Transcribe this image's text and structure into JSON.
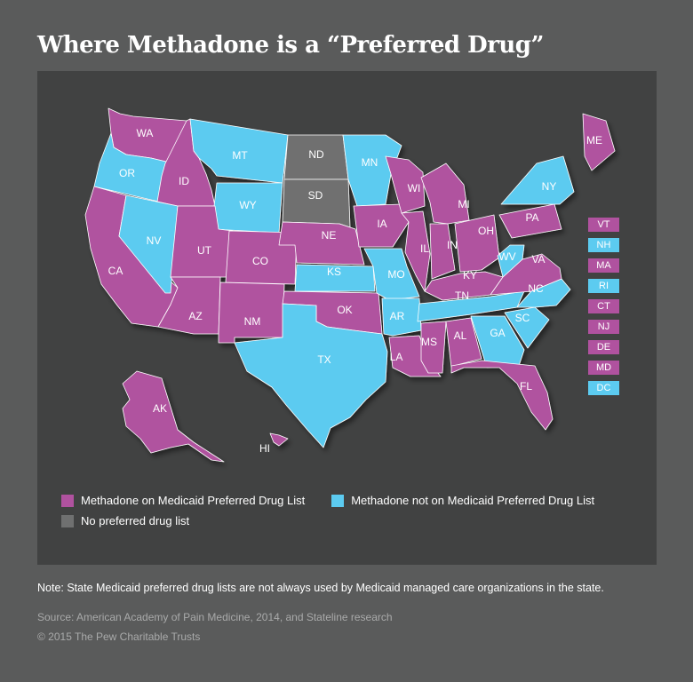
{
  "title": "Where Methadone is a “Preferred Drug”",
  "colors": {
    "on_list": "#b0529f",
    "not_on_list": "#5ccbf0",
    "no_list": "#6f7070"
  },
  "states": [
    {
      "abbr": "WA",
      "status": "on_list"
    },
    {
      "abbr": "OR",
      "status": "not_on_list"
    },
    {
      "abbr": "CA",
      "status": "on_list"
    },
    {
      "abbr": "ID",
      "status": "on_list"
    },
    {
      "abbr": "NV",
      "status": "not_on_list"
    },
    {
      "abbr": "MT",
      "status": "not_on_list"
    },
    {
      "abbr": "WY",
      "status": "not_on_list"
    },
    {
      "abbr": "UT",
      "status": "on_list"
    },
    {
      "abbr": "AZ",
      "status": "on_list"
    },
    {
      "abbr": "CO",
      "status": "on_list"
    },
    {
      "abbr": "NM",
      "status": "on_list"
    },
    {
      "abbr": "ND",
      "status": "no_list"
    },
    {
      "abbr": "SD",
      "status": "no_list"
    },
    {
      "abbr": "NE",
      "status": "on_list"
    },
    {
      "abbr": "KS",
      "status": "not_on_list"
    },
    {
      "abbr": "OK",
      "status": "on_list"
    },
    {
      "abbr": "TX",
      "status": "not_on_list"
    },
    {
      "abbr": "MN",
      "status": "not_on_list"
    },
    {
      "abbr": "IA",
      "status": "on_list"
    },
    {
      "abbr": "MO",
      "status": "not_on_list"
    },
    {
      "abbr": "AR",
      "status": "not_on_list"
    },
    {
      "abbr": "LA",
      "status": "on_list"
    },
    {
      "abbr": "WI",
      "status": "on_list"
    },
    {
      "abbr": "IL",
      "status": "on_list"
    },
    {
      "abbr": "MI",
      "status": "on_list"
    },
    {
      "abbr": "IN",
      "status": "on_list"
    },
    {
      "abbr": "OH",
      "status": "on_list"
    },
    {
      "abbr": "KY",
      "status": "on_list"
    },
    {
      "abbr": "TN",
      "status": "not_on_list"
    },
    {
      "abbr": "MS",
      "status": "on_list"
    },
    {
      "abbr": "AL",
      "status": "on_list"
    },
    {
      "abbr": "GA",
      "status": "not_on_list"
    },
    {
      "abbr": "FL",
      "status": "on_list"
    },
    {
      "abbr": "SC",
      "status": "not_on_list"
    },
    {
      "abbr": "NC",
      "status": "not_on_list"
    },
    {
      "abbr": "VA",
      "status": "on_list"
    },
    {
      "abbr": "WV",
      "status": "not_on_list"
    },
    {
      "abbr": "PA",
      "status": "on_list"
    },
    {
      "abbr": "NY",
      "status": "not_on_list"
    },
    {
      "abbr": "ME",
      "status": "on_list"
    },
    {
      "abbr": "AK",
      "status": "on_list"
    },
    {
      "abbr": "HI",
      "status": "on_list"
    }
  ],
  "small_states": [
    {
      "abbr": "VT",
      "status": "on_list"
    },
    {
      "abbr": "NH",
      "status": "not_on_list"
    },
    {
      "abbr": "MA",
      "status": "on_list"
    },
    {
      "abbr": "RI",
      "status": "not_on_list"
    },
    {
      "abbr": "CT",
      "status": "on_list"
    },
    {
      "abbr": "NJ",
      "status": "on_list"
    },
    {
      "abbr": "DE",
      "status": "on_list"
    },
    {
      "abbr": "MD",
      "status": "on_list"
    },
    {
      "abbr": "DC",
      "status": "not_on_list"
    }
  ],
  "legend": {
    "on_list": "Methadone on Medicaid Preferred Drug List",
    "not_on_list": "Methadone not on Medicaid Preferred Drug List",
    "no_list": "No preferred drug list"
  },
  "note": "Note: State Medicaid preferred drug lists are not always used by Medicaid managed care organizations in the state.",
  "source": "Source: American Academy of Pain Medicine, 2014, and Stateline research",
  "copyright": "© 2015 The Pew Charitable Trusts"
}
